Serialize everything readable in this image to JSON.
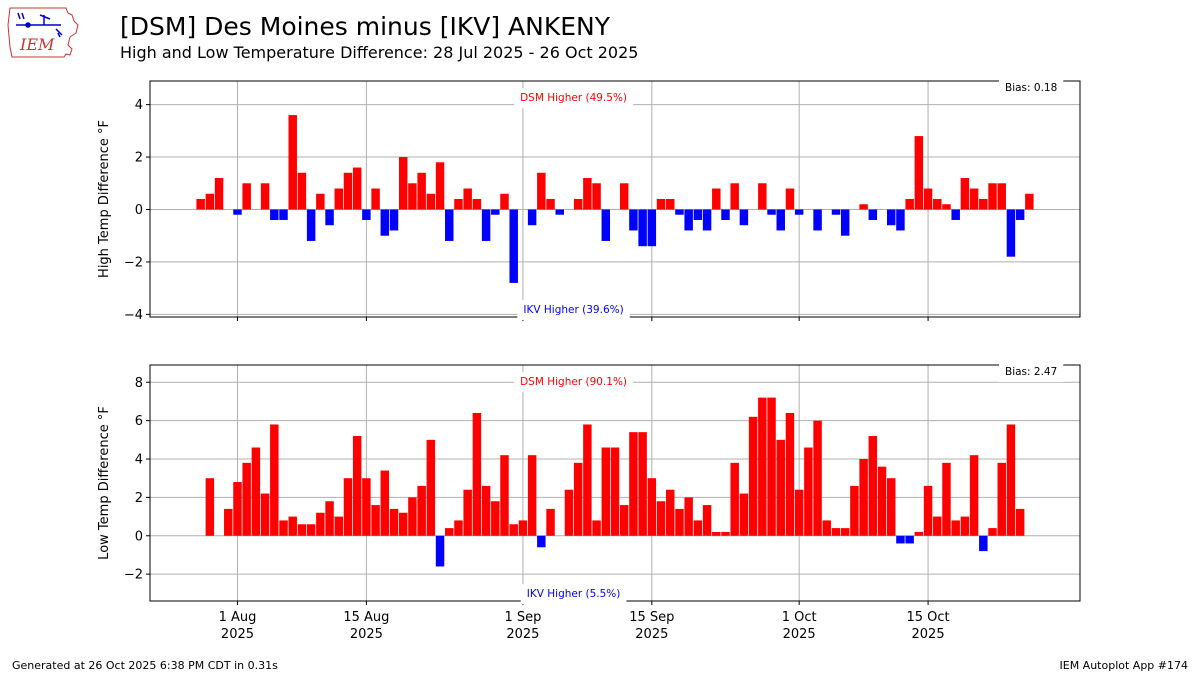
{
  "header": {
    "title": "[DSM] Des Moines minus [IKV] ANKENY",
    "subtitle": "High and Low Temperature Difference: 28 Jul 2025 - 26 Oct 2025",
    "logo_text": "IEM"
  },
  "footer": {
    "generated": "Generated at 26 Oct 2025 6:38 PM CDT in 0.31s",
    "app": "IEM Autoplot App #174"
  },
  "colors": {
    "positive": "#ff0000",
    "negative": "#0000ff",
    "grid": "#b0b0b0"
  },
  "chart_data": [
    {
      "type": "bar",
      "x_start": "2025-07-28",
      "x": [
        "Jul 28",
        "Jul 29",
        "Jul 30",
        "Jul 31",
        "Aug 1",
        "Aug 2",
        "Aug 3",
        "Aug 4",
        "Aug 5",
        "Aug 6",
        "Aug 7",
        "Aug 8",
        "Aug 9",
        "Aug 10",
        "Aug 11",
        "Aug 12",
        "Aug 13",
        "Aug 14",
        "Aug 15",
        "Aug 16",
        "Aug 17",
        "Aug 18",
        "Aug 19",
        "Aug 20",
        "Aug 21",
        "Aug 22",
        "Aug 23",
        "Aug 24",
        "Aug 25",
        "Aug 26",
        "Aug 27",
        "Aug 28",
        "Aug 29",
        "Aug 30",
        "Aug 31",
        "Sep 1",
        "Sep 2",
        "Sep 3",
        "Sep 4",
        "Sep 5",
        "Sep 6",
        "Sep 7",
        "Sep 8",
        "Sep 9",
        "Sep 10",
        "Sep 11",
        "Sep 12",
        "Sep 13",
        "Sep 14",
        "Sep 15",
        "Sep 16",
        "Sep 17",
        "Sep 18",
        "Sep 19",
        "Sep 20",
        "Sep 21",
        "Sep 22",
        "Sep 23",
        "Sep 24",
        "Sep 25",
        "Sep 26",
        "Sep 27",
        "Sep 28",
        "Sep 29",
        "Sep 30",
        "Oct 1",
        "Oct 2",
        "Oct 3",
        "Oct 4",
        "Oct 5",
        "Oct 6",
        "Oct 7",
        "Oct 8",
        "Oct 9",
        "Oct 10",
        "Oct 11",
        "Oct 12",
        "Oct 13",
        "Oct 14",
        "Oct 15",
        "Oct 16",
        "Oct 17",
        "Oct 18",
        "Oct 19",
        "Oct 20",
        "Oct 21",
        "Oct 22",
        "Oct 23",
        "Oct 24",
        "Oct 25",
        "Oct 26"
      ],
      "values": [
        0.4,
        0.6,
        1.2,
        0,
        -0.2,
        1.0,
        0,
        1.0,
        -0.4,
        -0.4,
        3.6,
        1.4,
        -1.2,
        0.6,
        -0.6,
        0.8,
        1.4,
        1.6,
        -0.4,
        0.8,
        -1.0,
        -0.8,
        2.0,
        1.0,
        1.4,
        0.6,
        1.8,
        -1.2,
        0.4,
        0.8,
        0.4,
        -1.2,
        -0.2,
        0.6,
        -2.8,
        0,
        -0.6,
        1.4,
        0.4,
        -0.2,
        0,
        0.4,
        1.2,
        1.0,
        -1.2,
        0,
        1.0,
        -0.8,
        -1.4,
        -1.4,
        0.4,
        0.4,
        -0.2,
        -0.8,
        -0.4,
        -0.8,
        0.8,
        -0.4,
        1.0,
        -0.6,
        0,
        1.0,
        -0.2,
        -0.8,
        0.8,
        -0.2,
        0,
        -0.8,
        0,
        -0.2,
        -1.0,
        0,
        0.2,
        -0.4,
        0,
        -0.6,
        -0.8,
        0.4,
        2.8,
        0.8,
        0.4,
        0.2,
        -0.4,
        1.2,
        0.8,
        0.4,
        1.0,
        1.0,
        -1.8,
        -0.4,
        0.6
      ],
      "ylabel": "High Temp Difference °F",
      "ylim": [
        -4.1,
        4.9
      ],
      "yticks": [
        -4,
        -2,
        0,
        2,
        4
      ],
      "xticks": [
        {
          "day": 4,
          "label": "1 Aug",
          "year": "2025"
        },
        {
          "day": 18,
          "label": "15 Aug",
          "year": "2025"
        },
        {
          "day": 35,
          "label": "1 Sep",
          "year": "2025"
        },
        {
          "day": 49,
          "label": "15 Sep",
          "year": "2025"
        },
        {
          "day": 65,
          "label": "1 Oct",
          "year": "2025"
        },
        {
          "day": 79,
          "label": "15 Oct",
          "year": "2025"
        }
      ],
      "show_xtick_labels": false,
      "grid": true,
      "annotations": {
        "top": "DSM Higher (49.5%)",
        "bottom": "IKV Higher (39.6%)",
        "bias": "Bias: 0.18"
      }
    },
    {
      "type": "bar",
      "x_start": "2025-07-28",
      "x": [
        "Jul 28",
        "Jul 29",
        "Jul 30",
        "Jul 31",
        "Aug 1",
        "Aug 2",
        "Aug 3",
        "Aug 4",
        "Aug 5",
        "Aug 6",
        "Aug 7",
        "Aug 8",
        "Aug 9",
        "Aug 10",
        "Aug 11",
        "Aug 12",
        "Aug 13",
        "Aug 14",
        "Aug 15",
        "Aug 16",
        "Aug 17",
        "Aug 18",
        "Aug 19",
        "Aug 20",
        "Aug 21",
        "Aug 22",
        "Aug 23",
        "Aug 24",
        "Aug 25",
        "Aug 26",
        "Aug 27",
        "Aug 28",
        "Aug 29",
        "Aug 30",
        "Aug 31",
        "Sep 1",
        "Sep 2",
        "Sep 3",
        "Sep 4",
        "Sep 5",
        "Sep 6",
        "Sep 7",
        "Sep 8",
        "Sep 9",
        "Sep 10",
        "Sep 11",
        "Sep 12",
        "Sep 13",
        "Sep 14",
        "Sep 15",
        "Sep 16",
        "Sep 17",
        "Sep 18",
        "Sep 19",
        "Sep 20",
        "Sep 21",
        "Sep 22",
        "Sep 23",
        "Sep 24",
        "Sep 25",
        "Sep 26",
        "Sep 27",
        "Sep 28",
        "Sep 29",
        "Sep 30",
        "Oct 1",
        "Oct 2",
        "Oct 3",
        "Oct 4",
        "Oct 5",
        "Oct 6",
        "Oct 7",
        "Oct 8",
        "Oct 9",
        "Oct 10",
        "Oct 11",
        "Oct 12",
        "Oct 13",
        "Oct 14",
        "Oct 15",
        "Oct 16",
        "Oct 17",
        "Oct 18",
        "Oct 19",
        "Oct 20",
        "Oct 21",
        "Oct 22",
        "Oct 23",
        "Oct 24",
        "Oct 25",
        "Oct 26"
      ],
      "values": [
        0,
        3.0,
        0,
        1.4,
        2.8,
        3.8,
        4.6,
        2.2,
        5.8,
        0.8,
        1.0,
        0.6,
        0.6,
        1.2,
        1.8,
        1.0,
        3.0,
        5.2,
        3.0,
        1.6,
        3.4,
        1.4,
        1.2,
        2.0,
        2.6,
        5.0,
        -1.6,
        0.4,
        0.8,
        2.4,
        6.4,
        2.6,
        1.8,
        4.2,
        0.6,
        0.8,
        4.2,
        -0.6,
        1.4,
        0,
        2.4,
        3.8,
        5.8,
        0.8,
        4.6,
        4.6,
        1.6,
        5.4,
        5.4,
        3.0,
        1.8,
        2.4,
        1.4,
        2.0,
        0.8,
        1.6,
        0.2,
        0.2,
        3.8,
        2.2,
        6.2,
        7.2,
        7.2,
        5.0,
        6.4,
        2.4,
        4.6,
        6.0,
        0.8,
        0.4,
        0.4,
        2.6,
        4.0,
        5.2,
        3.6,
        3.0,
        -0.4,
        -0.4,
        0.2,
        2.6,
        1.0,
        3.8,
        0.8,
        1.0,
        4.2,
        -0.8,
        0.4,
        3.8,
        5.8,
        1.4,
        0
      ],
      "ylabel": "Low Temp Difference °F",
      "ylim": [
        -3.4,
        8.9
      ],
      "yticks": [
        -2,
        0,
        2,
        4,
        6,
        8
      ],
      "xticks": [
        {
          "day": 4,
          "label": "1 Aug",
          "year": "2025"
        },
        {
          "day": 18,
          "label": "15 Aug",
          "year": "2025"
        },
        {
          "day": 35,
          "label": "1 Sep",
          "year": "2025"
        },
        {
          "day": 49,
          "label": "15 Sep",
          "year": "2025"
        },
        {
          "day": 65,
          "label": "1 Oct",
          "year": "2025"
        },
        {
          "day": 79,
          "label": "15 Oct",
          "year": "2025"
        }
      ],
      "show_xtick_labels": true,
      "grid": true,
      "annotations": {
        "top": "DSM Higher (90.1%)",
        "bottom": "IKV Higher (5.5%)",
        "bias": "Bias: 2.47"
      }
    }
  ]
}
